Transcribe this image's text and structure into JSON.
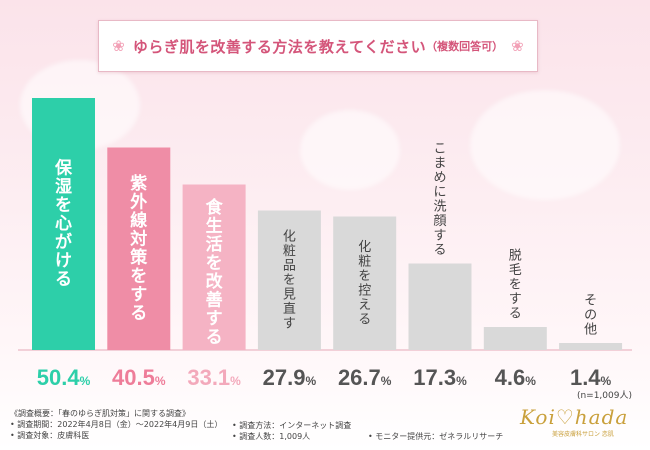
{
  "title": {
    "main": "ゆらぎ肌を改善する方法を教えてください",
    "sub": "（複数回答可）"
  },
  "chart_data": {
    "type": "bar",
    "categories": [
      "保湿を心がける",
      "紫外線対策をする",
      "食生活を改善する",
      "化粧品を見直す",
      "化粧を控える",
      "こまめに洗顔する",
      "脱毛をする",
      "その他"
    ],
    "values": [
      50.4,
      40.5,
      33.1,
      27.9,
      26.7,
      17.3,
      4.6,
      1.4
    ],
    "value_labels": [
      "50.4",
      "40.5",
      "33.1",
      "27.9",
      "26.7",
      "17.3",
      "4.6",
      "1.4"
    ],
    "unit": "%",
    "colors": [
      "#2dcfa9",
      "#ef8da6",
      "#f5b3c4",
      "#d9d9d9",
      "#d9d9d9",
      "#d9d9d9",
      "#d9d9d9",
      "#d9d9d9"
    ],
    "label_colors": [
      "#2dcfa9",
      "#ee7d99",
      "#f3a9bb",
      "#555555",
      "#555555",
      "#555555",
      "#555555",
      "#555555"
    ],
    "inner_text_colors": [
      "#ffffff",
      "#ffffff",
      "#ffffff",
      "#444444",
      "#444444",
      "#444444",
      "#444444",
      "#444444"
    ],
    "ylim": [
      0,
      50.4
    ],
    "sample_note": "(n=1,009人)"
  },
  "footer": {
    "line1": "《調査概要：「春のゆらぎ肌対策」に関する調査》",
    "line2": "• 調査期間：2022年4月8日（金）〜2022年4月9日（土）",
    "line3": "• 調査対象：皮膚科医",
    "method": "• 調査方法：インターネット調査",
    "people": "• 調査人数：1,009人",
    "monitor": "• モニター提供元：ゼネラルリサーチ"
  },
  "logo": {
    "main": "Koi♡hada",
    "sub": "美容皮膚科サロン 恋肌"
  }
}
